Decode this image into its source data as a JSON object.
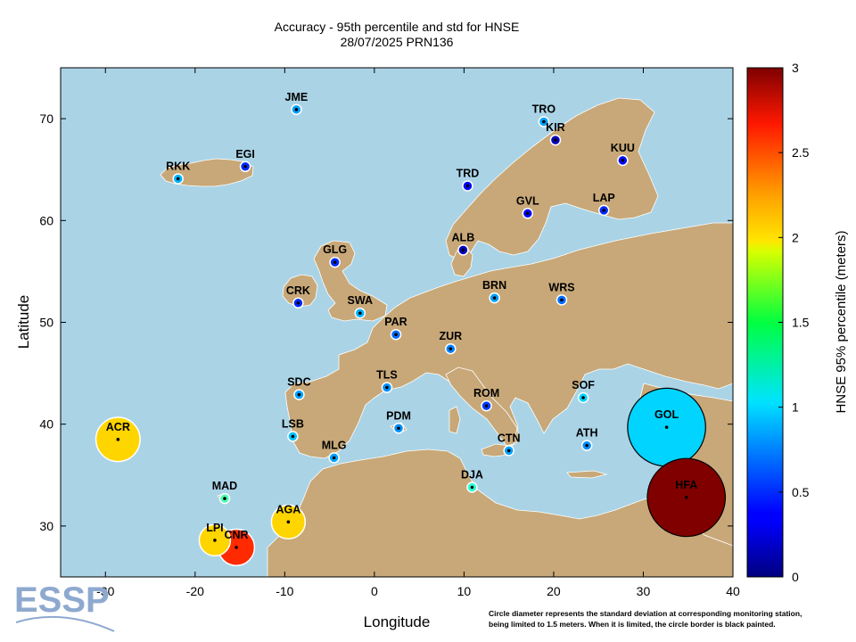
{
  "title_line1": "Accuracy - 95th percentile and std for HNSE",
  "title_line2": "28/07/2025 PRN136",
  "logo_text": "ESSP",
  "footnote_line1": "Circle diameter represents the standard deviation at corresponding monitoring station,",
  "footnote_line2": "being limited to 1.5 meters. When it is limited, the circle border is black painted.",
  "colors": {
    "sea": "#aad3e6",
    "land": "#c8a878",
    "border": "#ffffff"
  },
  "chart_data": {
    "type": "scatter",
    "title": "Accuracy - 95th percentile and std for HNSE",
    "subtitle": "28/07/2025 PRN136",
    "xlabel": "Longitude",
    "ylabel": "Latitude",
    "xlim": [
      -35,
      40
    ],
    "ylim": [
      25,
      75
    ],
    "xticks": [
      -30,
      -20,
      -10,
      0,
      10,
      20,
      30,
      40
    ],
    "yticks": [
      30,
      40,
      50,
      60,
      70
    ],
    "colorbar": {
      "label": "HNSE 95% percentile (meters)",
      "min": 0,
      "max": 3,
      "ticks": [
        "0",
        "0.5",
        "1",
        "1.5",
        "2",
        "2.5",
        "3"
      ],
      "colormap": "jet"
    },
    "stations": [
      {
        "name": "JME",
        "lon": -8.7,
        "lat": 70.9,
        "p95": 0.85,
        "std": 0.05,
        "limited": false
      },
      {
        "name": "TRO",
        "lon": 18.9,
        "lat": 69.7,
        "p95": 0.85,
        "std": 0.05,
        "limited": false
      },
      {
        "name": "KIR",
        "lon": 20.2,
        "lat": 67.9,
        "p95": 0.2,
        "std": 0.02,
        "limited": false
      },
      {
        "name": "RKK",
        "lon": -21.9,
        "lat": 64.1,
        "p95": 0.9,
        "std": 0.08,
        "limited": false
      },
      {
        "name": "EGI",
        "lon": -14.4,
        "lat": 65.3,
        "p95": 0.5,
        "std": 0.05,
        "limited": false
      },
      {
        "name": "KUU",
        "lon": 27.7,
        "lat": 65.9,
        "p95": 0.4,
        "std": 0.03,
        "limited": false
      },
      {
        "name": "TRD",
        "lon": 10.4,
        "lat": 63.4,
        "p95": 0.4,
        "std": 0.03,
        "limited": false
      },
      {
        "name": "GVL",
        "lon": 17.1,
        "lat": 60.7,
        "p95": 0.4,
        "std": 0.03,
        "limited": false
      },
      {
        "name": "LAP",
        "lon": 25.6,
        "lat": 61.0,
        "p95": 0.5,
        "std": 0.04,
        "limited": false
      },
      {
        "name": "ALB",
        "lon": 9.9,
        "lat": 57.1,
        "p95": 0.2,
        "std": 0.01,
        "limited": false
      },
      {
        "name": "GLG",
        "lon": -4.4,
        "lat": 55.9,
        "p95": 0.5,
        "std": 0.03,
        "limited": false
      },
      {
        "name": "CRK",
        "lon": -8.5,
        "lat": 51.9,
        "p95": 0.5,
        "std": 0.03,
        "limited": false
      },
      {
        "name": "SWA",
        "lon": -1.6,
        "lat": 50.9,
        "p95": 0.9,
        "std": 0.08,
        "limited": false
      },
      {
        "name": "BRN",
        "lon": 13.4,
        "lat": 52.4,
        "p95": 0.85,
        "std": 0.07,
        "limited": false
      },
      {
        "name": "WRS",
        "lon": 20.9,
        "lat": 52.2,
        "p95": 0.7,
        "std": 0.06,
        "limited": false
      },
      {
        "name": "PAR",
        "lon": 2.4,
        "lat": 48.8,
        "p95": 0.7,
        "std": 0.06,
        "limited": false
      },
      {
        "name": "ZUR",
        "lon": 8.5,
        "lat": 47.4,
        "p95": 0.75,
        "std": 0.06,
        "limited": false
      },
      {
        "name": "TLS",
        "lon": 1.4,
        "lat": 43.6,
        "p95": 0.8,
        "std": 0.06,
        "limited": false
      },
      {
        "name": "SDC",
        "lon": -8.4,
        "lat": 42.9,
        "p95": 0.85,
        "std": 0.07,
        "limited": false
      },
      {
        "name": "ROM",
        "lon": 12.5,
        "lat": 41.8,
        "p95": 0.55,
        "std": 0.05,
        "limited": false
      },
      {
        "name": "SOF",
        "lon": 23.3,
        "lat": 42.6,
        "p95": 1.0,
        "std": 0.08,
        "limited": false
      },
      {
        "name": "ACR",
        "lon": -28.6,
        "lat": 38.5,
        "p95": 2.0,
        "std": 0.85,
        "limited": false
      },
      {
        "name": "LSB",
        "lon": -9.1,
        "lat": 38.8,
        "p95": 0.95,
        "std": 0.08,
        "limited": false
      },
      {
        "name": "PDM",
        "lon": 2.7,
        "lat": 39.6,
        "p95": 0.8,
        "std": 0.07,
        "limited": false
      },
      {
        "name": "GOL",
        "lon": 32.6,
        "lat": 39.7,
        "p95": 1.0,
        "std": 1.5,
        "limited": true
      },
      {
        "name": "MLG",
        "lon": -4.5,
        "lat": 36.7,
        "p95": 0.85,
        "std": 0.07,
        "limited": false
      },
      {
        "name": "CTN",
        "lon": 15.0,
        "lat": 37.4,
        "p95": 0.85,
        "std": 0.06,
        "limited": false
      },
      {
        "name": "ATH",
        "lon": 23.7,
        "lat": 37.9,
        "p95": 0.8,
        "std": 0.07,
        "limited": false
      },
      {
        "name": "DJA",
        "lon": 10.9,
        "lat": 33.8,
        "p95": 1.25,
        "std": 0.1,
        "limited": false
      },
      {
        "name": "MAD",
        "lon": -16.7,
        "lat": 32.7,
        "p95": 1.35,
        "std": 0.12,
        "limited": false
      },
      {
        "name": "HFA",
        "lon": 34.8,
        "lat": 32.8,
        "p95": 3.0,
        "std": 1.5,
        "limited": true
      },
      {
        "name": "AGA",
        "lon": -9.6,
        "lat": 30.4,
        "p95": 2.0,
        "std": 0.65,
        "limited": false
      },
      {
        "name": "LPI",
        "lon": -17.8,
        "lat": 28.6,
        "p95": 2.0,
        "std": 0.6,
        "limited": false
      },
      {
        "name": "CNR",
        "lon": -15.4,
        "lat": 27.9,
        "p95": 2.5,
        "std": 0.7,
        "limited": false
      }
    ]
  }
}
